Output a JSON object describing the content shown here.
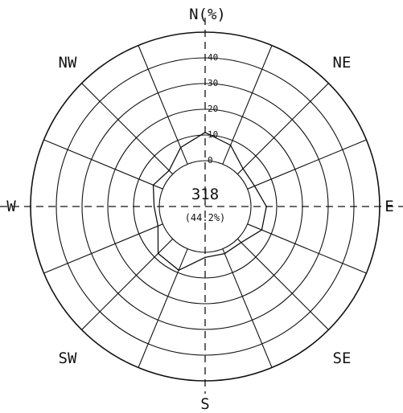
{
  "chart_data": {
    "type": "polar-line",
    "title": "",
    "radial_axis_label": "N(%)",
    "radial_ticks": [
      "0",
      "10",
      "20",
      "30",
      "40"
    ],
    "radial_range": [
      0,
      50
    ],
    "calm": {
      "count": "318",
      "percent": "(44.2%)"
    },
    "directions": [
      "N",
      "NNE",
      "NE",
      "ENE",
      "E",
      "ESE",
      "SE",
      "SSE",
      "S",
      "SSW",
      "SW",
      "WSW",
      "W",
      "WNW",
      "NW",
      "NNW"
    ],
    "direction_labels": [
      {
        "dir": "N",
        "text": "N(%)"
      },
      {
        "dir": "NE",
        "text": "NE"
      },
      {
        "dir": "E",
        "text": "E"
      },
      {
        "dir": "SE",
        "text": "SE"
      },
      {
        "dir": "S",
        "text": "S"
      },
      {
        "dir": "SW",
        "text": "SW"
      },
      {
        "dir": "W",
        "text": "W"
      },
      {
        "dir": "NW",
        "text": "NW"
      }
    ],
    "values": [
      11,
      8,
      3,
      3,
      6,
      6,
      2,
      2,
      2,
      9,
      8,
      2,
      2,
      4,
      2,
      7
    ],
    "grid": true
  }
}
